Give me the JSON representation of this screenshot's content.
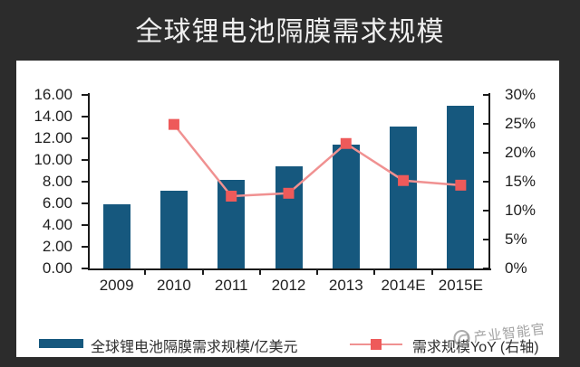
{
  "title": "全球锂电池隔膜需求规模",
  "colors": {
    "background": "#2c2c2c",
    "panel": "#ffffff",
    "bar": "#16587e",
    "line": "#f09191",
    "marker": "#ee5a5a",
    "axis": "#1b1b1b",
    "title_text": "#f0f0f0",
    "tick_text": "#1f1f1f",
    "legend_text": "#2e2e2e",
    "watermark_text": "#969696"
  },
  "chart_data": {
    "type": "bar",
    "subtype": "combo-bar-line-dual-axis",
    "title": "全球锂电池隔膜需求规模",
    "categories": [
      "2009",
      "2010",
      "2011",
      "2012",
      "2013",
      "2014E",
      "2015E"
    ],
    "series": [
      {
        "name": "全球锂电池隔膜需求规模/亿美元",
        "type": "bar",
        "axis": "left",
        "values": [
          5.9,
          7.2,
          8.2,
          9.4,
          11.4,
          13.1,
          15.0
        ]
      },
      {
        "name": "需求规模YoY (右轴)",
        "type": "line",
        "axis": "right",
        "values": [
          null,
          24.9,
          12.5,
          13.0,
          21.6,
          15.2,
          14.4
        ]
      }
    ],
    "left_axis": {
      "min": 0,
      "max": 16,
      "tick_labels": [
        "16.00",
        "14.00",
        "12.00",
        "10.00",
        "8.00",
        "6.00",
        "4.00",
        "2.00",
        "0.00"
      ]
    },
    "right_axis": {
      "min": 0,
      "max": 30,
      "tick_labels": [
        "30%",
        "25%",
        "20%",
        "15%",
        "10%",
        "5%",
        "0%"
      ]
    },
    "grid": false,
    "legend_position": "bottom"
  },
  "legend": {
    "bar_label": "全球锂电池隔膜需求规模/亿美元",
    "line_label": "需求规模YoY (右轴)"
  },
  "watermark": {
    "text": "产业智能官"
  }
}
